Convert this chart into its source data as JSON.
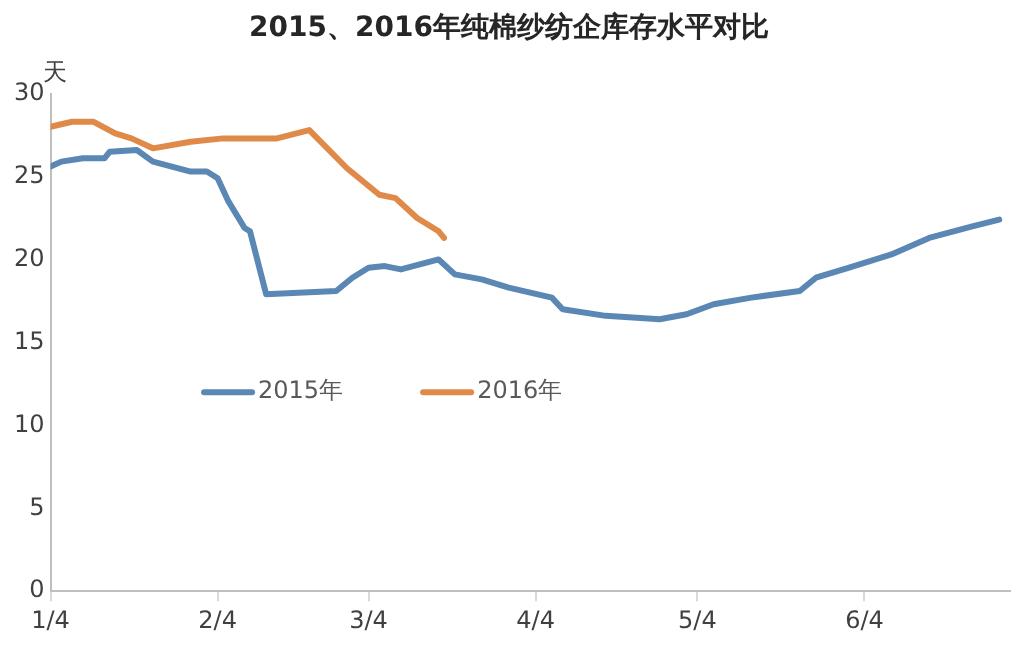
{
  "chart_data": {
    "type": "line",
    "title": "2015、2016年纯棉纱纺企库存水平对比",
    "ylabel": "天",
    "xlim": [
      "--01-04",
      "--07-01"
    ],
    "xticks": [
      {
        "value": "--01-04",
        "label": "1/4"
      },
      {
        "value": "--02-04",
        "label": "2/4"
      },
      {
        "value": "--03-04",
        "label": "3/4"
      },
      {
        "value": "--04-04",
        "label": "4/4"
      },
      {
        "value": "--05-04",
        "label": "5/4"
      },
      {
        "value": "--06-04",
        "label": "6/4"
      }
    ],
    "ylim": [
      0,
      30
    ],
    "yticks": [
      0,
      5,
      10,
      15,
      20,
      25,
      30
    ],
    "grid": false,
    "legend": "bottom left",
    "marker": "none",
    "line_style": "solid",
    "series": [
      {
        "name": "2015年",
        "color": "#5b87b5",
        "x": [
          "--01-04",
          "--01-06",
          "--01-10",
          "--01-14",
          "--01-15",
          "--01-20",
          "--01-23",
          "--01-30",
          "--02-02",
          "--02-04",
          "--02-06",
          "--02-09",
          "--02-10",
          "--02-13",
          "--02-26",
          "--03-01",
          "--03-04",
          "--03-07",
          "--03-10",
          "--03-17",
          "--03-20",
          "--03-25",
          "--03-30",
          "--04-07",
          "--04-09",
          "--04-17",
          "--04-27",
          "--05-02",
          "--05-07",
          "--05-14",
          "--05-23",
          "--05-26",
          "--06-01",
          "--06-09",
          "--06-16",
          "--06-24",
          "--06-29"
        ],
        "values": [
          25.6,
          25.9,
          26.1,
          26.1,
          26.5,
          26.6,
          25.9,
          25.3,
          25.3,
          24.9,
          23.5,
          21.9,
          21.7,
          17.9,
          18.1,
          18.9,
          19.5,
          19.6,
          19.4,
          20.0,
          19.1,
          18.8,
          18.3,
          17.7,
          17.0,
          16.6,
          16.4,
          16.7,
          17.3,
          17.7,
          18.1,
          18.9,
          19.5,
          20.3,
          21.3,
          22.0,
          22.4
        ]
      },
      {
        "name": "2016年",
        "color": "#e08a4a",
        "x": [
          "--01-04",
          "--01-08",
          "--01-12",
          "--01-16",
          "--01-19",
          "--01-23",
          "--01-30",
          "--02-05",
          "--02-15",
          "--02-21",
          "--02-28",
          "--03-06",
          "--03-09",
          "--03-13",
          "--03-17",
          "--03-18"
        ],
        "values": [
          28.0,
          28.3,
          28.3,
          27.6,
          27.3,
          26.7,
          27.1,
          27.3,
          27.3,
          27.8,
          25.5,
          23.9,
          23.7,
          22.5,
          21.7,
          21.3
        ]
      }
    ]
  }
}
